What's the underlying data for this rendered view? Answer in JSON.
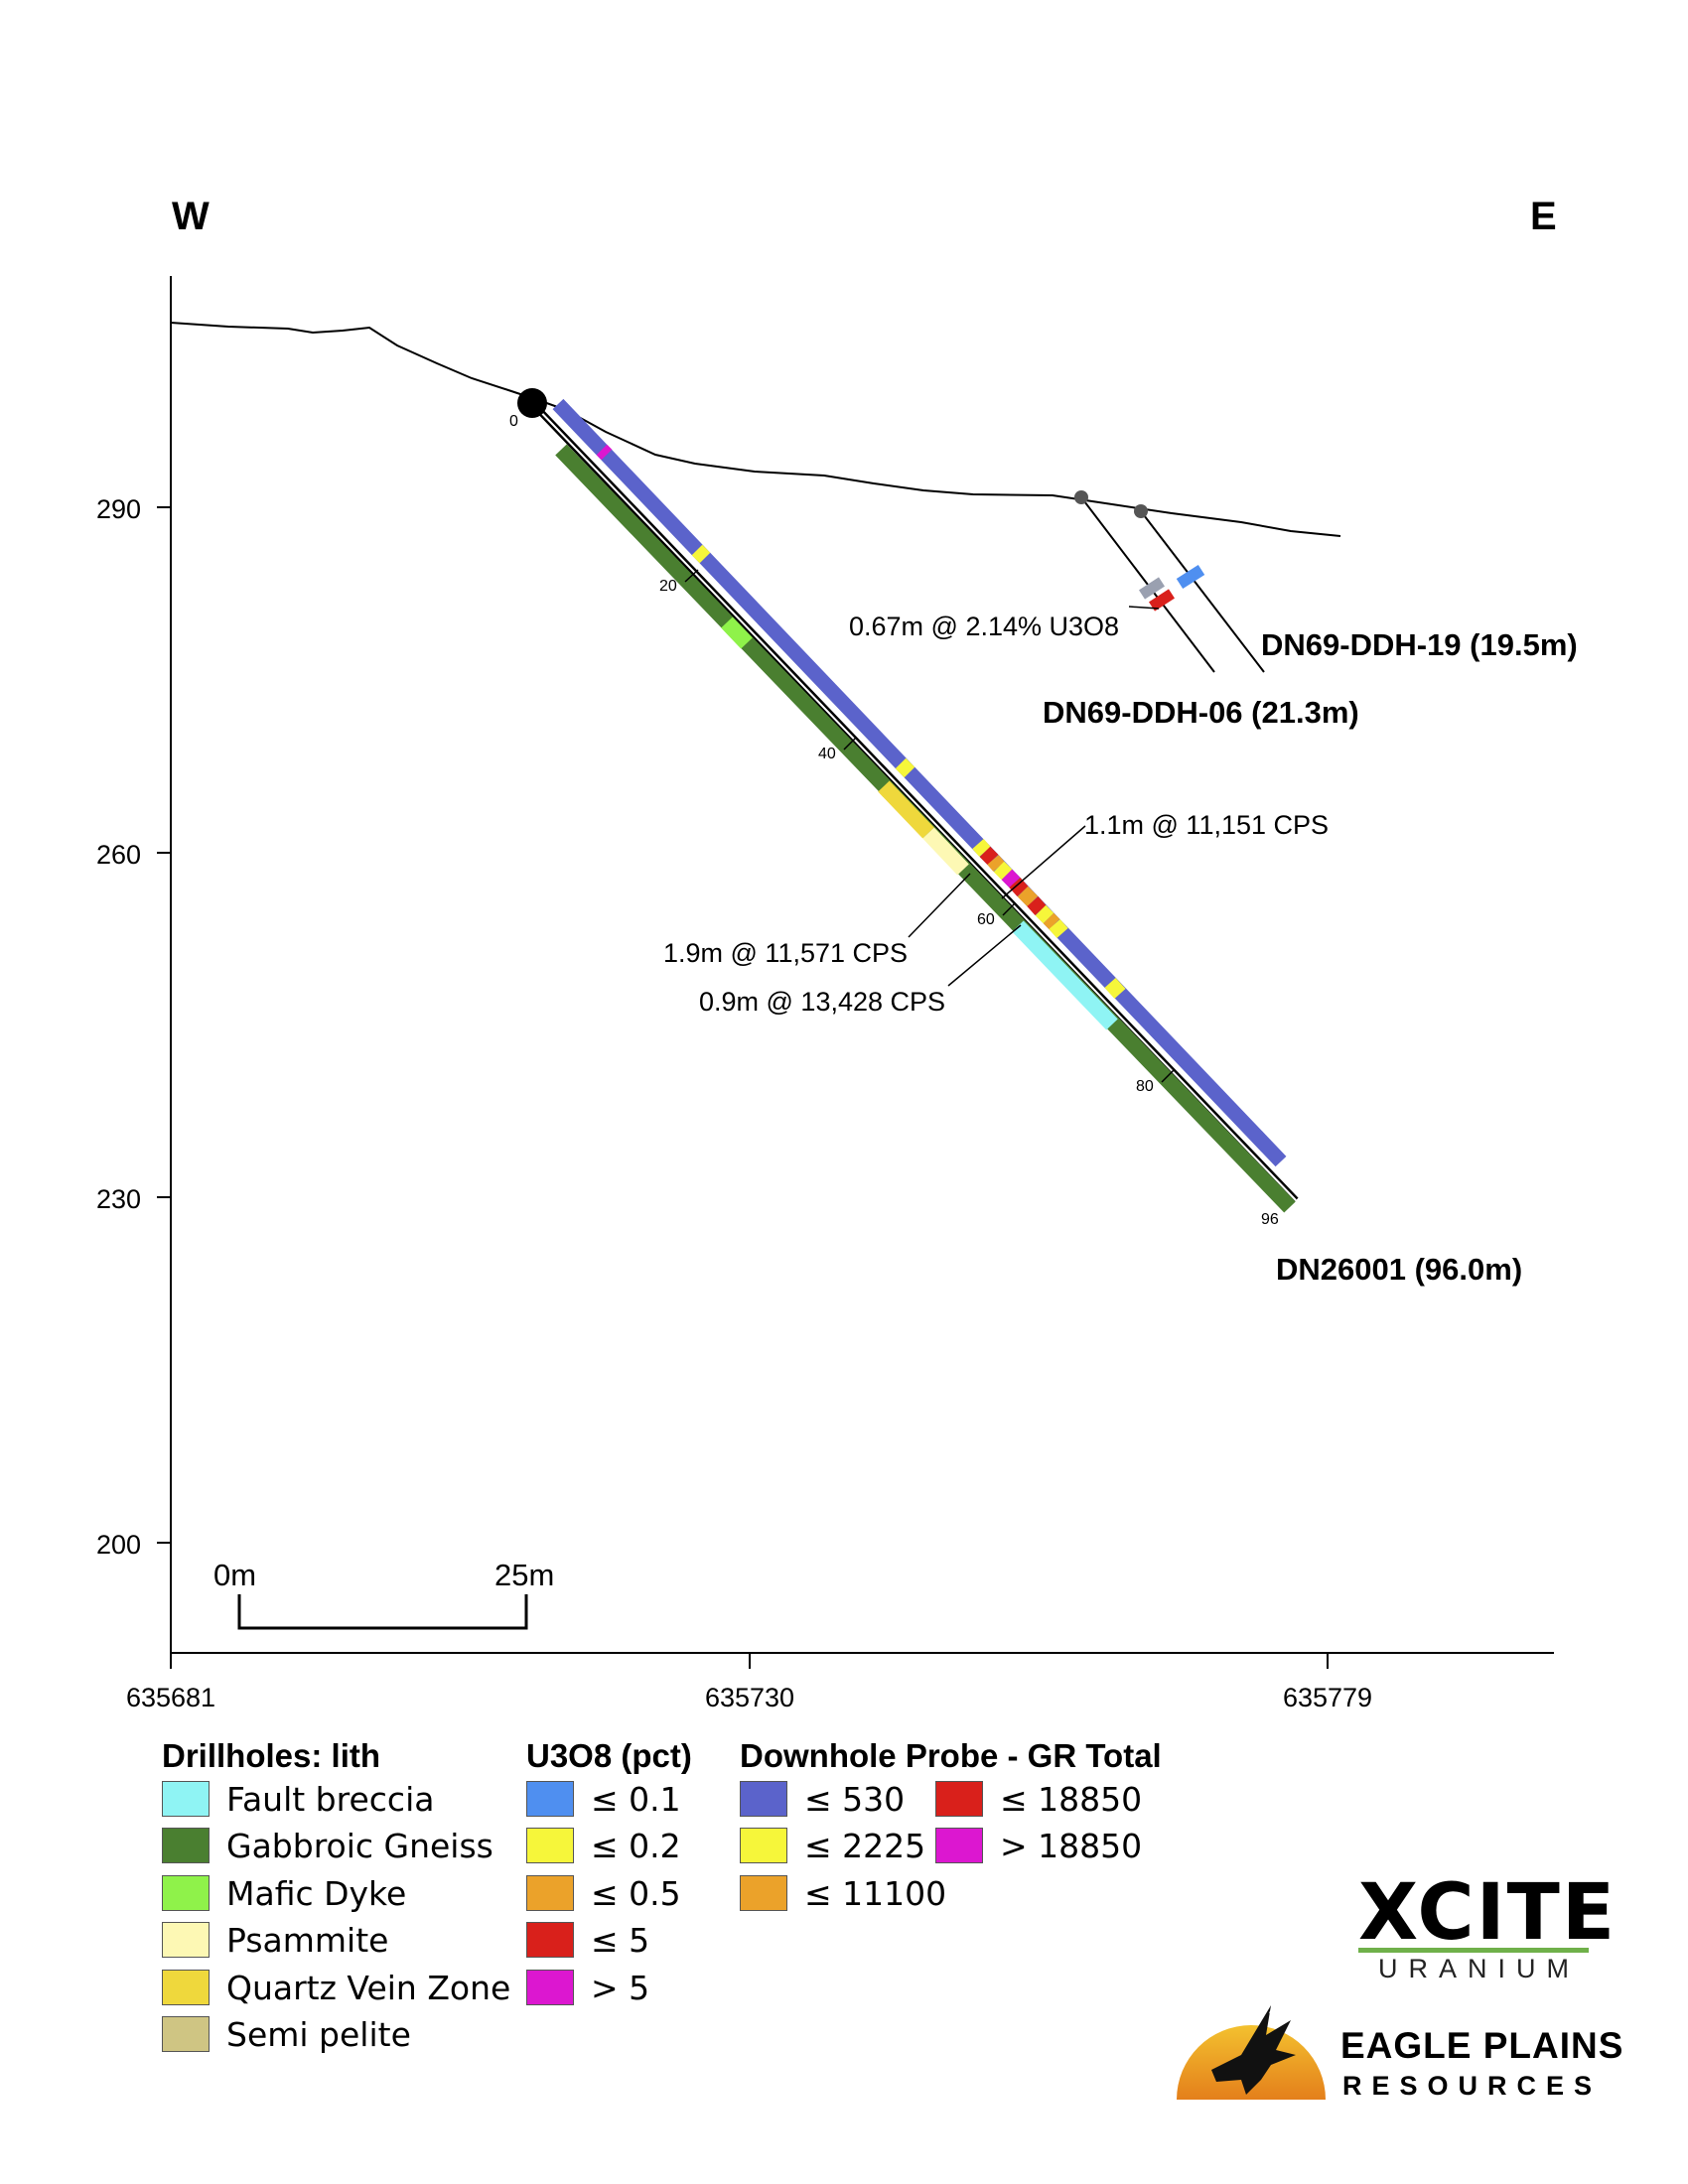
{
  "compass": {
    "west": "W",
    "east": "E"
  },
  "axes": {
    "y_ticks": [
      "290",
      "260",
      "230",
      "200"
    ],
    "x_ticks": [
      "635681",
      "635730",
      "635779"
    ]
  },
  "scale_bar": {
    "start": "0m",
    "end": "25m"
  },
  "drillholes": {
    "main": {
      "label": "DN26001 (96.0m)",
      "depth_marks": [
        "0",
        "20",
        "40",
        "60",
        "80",
        "96"
      ]
    },
    "hole_06": {
      "label": "DN69-DDH-06 (21.3m)"
    },
    "hole_19": {
      "label": "DN69-DDH-19 (19.5m)"
    }
  },
  "annotations": {
    "u3o8_intercept": "0.67m @ 2.14% U3O8",
    "cps_1": "1.1m @ 11,151 CPS",
    "cps_2": "1.9m @ 11,571 CPS",
    "cps_3": "0.9m  @ 13,428 CPS"
  },
  "legend": {
    "lith": {
      "title": "Drillholes: lith",
      "items": [
        {
          "label": "Fault breccia",
          "color": "#8ff4f4"
        },
        {
          "label": "Gabbroic Gneiss",
          "color": "#4a7f30"
        },
        {
          "label": "Mafic Dyke",
          "color": "#8ff24a"
        },
        {
          "label": "Psammite",
          "color": "#fdf8b4"
        },
        {
          "label": "Quartz Vein Zone",
          "color": "#efd83c"
        },
        {
          "label": "Semi pelite",
          "color": "#cfc583"
        }
      ]
    },
    "u3o8": {
      "title": "U3O8 (pct)",
      "items": [
        {
          "label": "≤ 0.1",
          "color": "#4f8ff0"
        },
        {
          "label": "≤ 0.2",
          "color": "#f6f63a"
        },
        {
          "label": "≤ 0.5",
          "color": "#eba22a"
        },
        {
          "label": "≤ 5",
          "color": "#d9201b"
        },
        {
          "label": "> 5",
          "color": "#dc17d0"
        }
      ]
    },
    "probe": {
      "title": "Downhole Probe - GR Total",
      "items": [
        {
          "label": "≤ 530",
          "color": "#5b63cb"
        },
        {
          "label": "≤ 2225",
          "color": "#f6f63a"
        },
        {
          "label": "≤ 11100",
          "color": "#eba22a"
        },
        {
          "label": "≤ 18850",
          "color": "#d9201b"
        },
        {
          "label": "> 18850",
          "color": "#dc17d0"
        }
      ]
    }
  },
  "logos": {
    "xcite": {
      "name": "XCITE",
      "sub": "URANIUM"
    },
    "eagle": {
      "name": "EAGLE PLAINS",
      "sub": "RESOURCES"
    }
  }
}
